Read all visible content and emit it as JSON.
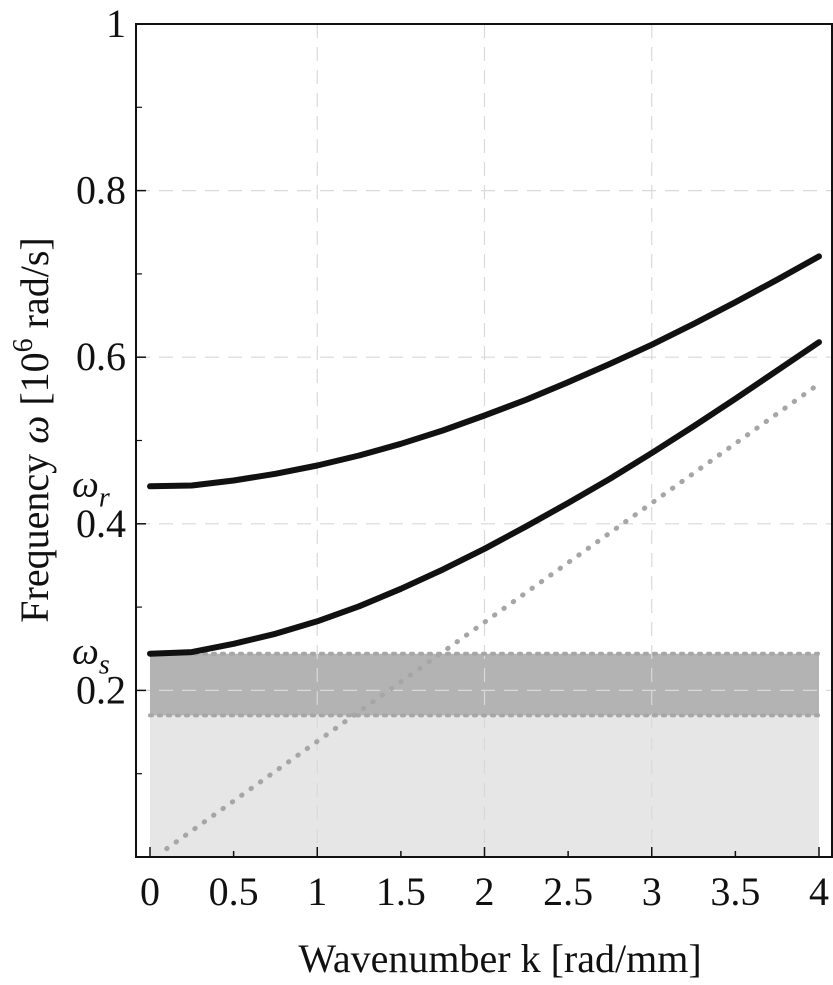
{
  "chart_data": {
    "type": "line",
    "xlabel": "Wavenumber k [rad/mm]",
    "ylabel": {
      "prefix": "Frequency ",
      "symbol": "ω",
      "mid": " [10",
      "sup": "6",
      "suffix": " rad/s]"
    },
    "xlim": [
      0,
      4
    ],
    "ylim": [
      0,
      1
    ],
    "x_ticks": [
      0,
      0.5,
      1,
      1.5,
      2,
      2.5,
      3,
      3.5,
      4
    ],
    "x_tick_labels": [
      "0",
      "0.5",
      "1",
      "1.5",
      "2",
      "2.5",
      "3",
      "3.5",
      "4"
    ],
    "y_ticks": [
      0.2,
      0.4,
      0.6,
      0.8,
      1
    ],
    "y_tick_labels": [
      "0.2",
      "0.4",
      "0.6",
      "0.8",
      "1"
    ],
    "grid": true,
    "series": [
      {
        "style": "solid-black",
        "x": [
          0,
          0.25,
          0.5,
          0.75,
          1,
          1.25,
          1.5,
          1.75,
          2,
          2.25,
          2.5,
          2.75,
          3,
          3.25,
          3.5,
          3.75,
          4
        ],
        "y": [
          0.445,
          0.446,
          0.452,
          0.46,
          0.47,
          0.482,
          0.496,
          0.512,
          0.53,
          0.549,
          0.57,
          0.592,
          0.615,
          0.64,
          0.666,
          0.693,
          0.721
        ]
      },
      {
        "style": "solid-black",
        "x": [
          0,
          0.25,
          0.5,
          0.75,
          1,
          1.25,
          1.5,
          1.75,
          2,
          2.25,
          2.5,
          2.75,
          3,
          3.25,
          3.5,
          3.75,
          4
        ],
        "y": [
          0.244,
          0.246,
          0.256,
          0.268,
          0.283,
          0.301,
          0.322,
          0.345,
          0.37,
          0.397,
          0.425,
          0.454,
          0.485,
          0.517,
          0.55,
          0.584,
          0.618
        ]
      },
      {
        "style": "dotted-gray",
        "x": [
          0.1,
          4
        ],
        "y": [
          0.01,
          0.568
        ]
      }
    ],
    "bands": [
      {
        "y0": 0,
        "y1": 0.17,
        "color": "#e6e6e6"
      },
      {
        "y0": 0.17,
        "y1": 0.244,
        "color": "#b3b3b3"
      }
    ],
    "band_edges": [
      0.17,
      0.244
    ],
    "annotations": [
      {
        "id": "omega-r",
        "base": "ω",
        "sub": "r",
        "y": 0.445
      },
      {
        "id": "omega-s",
        "base": "ω",
        "sub": "s",
        "y": 0.244
      }
    ],
    "colors": {
      "curve": "#111111",
      "asymptote": "#a6a6a6",
      "grid": "#d9d9d9",
      "band_light": "#e6e6e6",
      "band_dark": "#b3b3b3"
    }
  }
}
